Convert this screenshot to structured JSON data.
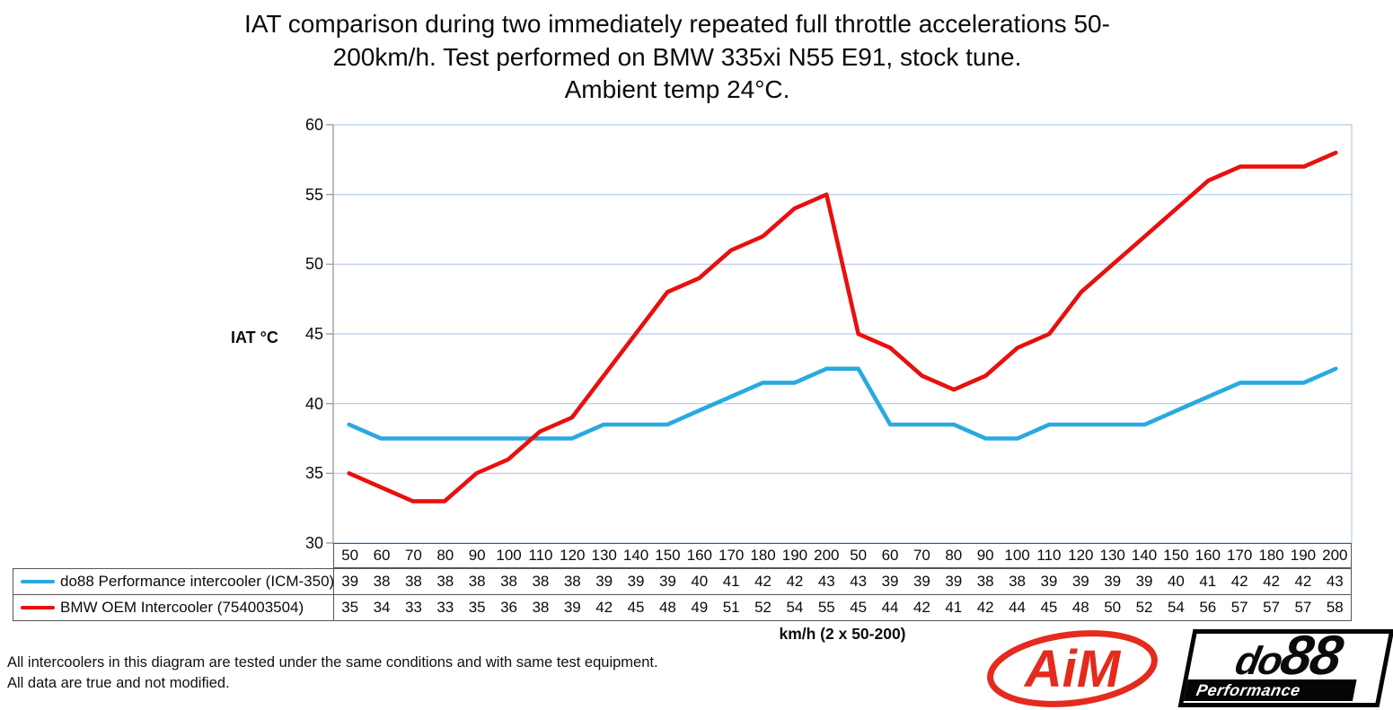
{
  "chart_data": {
    "type": "line",
    "title_lines": [
      "IAT comparison during two immediately repeated full throttle accelerations 50-",
      "200km/h. Test performed on BMW 335xi N55 E91, stock tune.",
      "Ambient temp 24°C."
    ],
    "ylabel": "IAT °C",
    "xlabel": "km/h (2 x 50-200)",
    "ylim": [
      30,
      60
    ],
    "yticks": [
      60,
      55,
      50,
      45,
      40,
      35,
      30
    ],
    "grid": true,
    "legend_position": "bottom-left of attached data table",
    "categories": [
      50,
      60,
      70,
      80,
      90,
      100,
      110,
      120,
      130,
      140,
      150,
      160,
      170,
      180,
      190,
      200,
      50,
      60,
      70,
      80,
      90,
      100,
      110,
      120,
      130,
      140,
      150,
      160,
      170,
      180,
      190,
      200
    ],
    "series": [
      {
        "name": "do88 Performance intercooler (ICM-350)",
        "color": "#29a9e0",
        "values": [
          39,
          38,
          38,
          38,
          38,
          38,
          38,
          38,
          39,
          39,
          39,
          40,
          41,
          42,
          42,
          43,
          43,
          39,
          39,
          39,
          38,
          38,
          39,
          39,
          39,
          39,
          40,
          41,
          42,
          42,
          42,
          43
        ],
        "plotted": [
          38.5,
          37.5,
          37.5,
          37.5,
          37.5,
          37.5,
          37.5,
          37.5,
          38.5,
          38.5,
          38.5,
          39.5,
          40.5,
          41.5,
          41.5,
          42.5,
          42.5,
          38.5,
          38.5,
          38.5,
          37.5,
          37.5,
          38.5,
          38.5,
          38.5,
          38.5,
          39.5,
          40.5,
          41.5,
          41.5,
          41.5,
          42.5
        ]
      },
      {
        "name": "BMW OEM Intercooler (754003504)",
        "color": "#e8100e",
        "values": [
          35,
          34,
          33,
          33,
          35,
          36,
          38,
          39,
          42,
          45,
          48,
          49,
          51,
          52,
          54,
          55,
          45,
          44,
          42,
          41,
          42,
          44,
          45,
          48,
          50,
          52,
          54,
          56,
          57,
          57,
          57,
          58
        ],
        "plotted": [
          35,
          34,
          33,
          33,
          35,
          36,
          38,
          39,
          42,
          45,
          48,
          49,
          51,
          52,
          54,
          55,
          45,
          44,
          42,
          41,
          42,
          44,
          45,
          48,
          50,
          52,
          54,
          56,
          57,
          57,
          57,
          58
        ]
      }
    ],
    "colors": {
      "grid": "#b8c9e4",
      "axis": "#a0a0a0"
    }
  },
  "footnote_lines": [
    "All intercoolers in this diagram are tested under the same conditions and with same test equipment.",
    "All data are true and not modified."
  ],
  "logos": {
    "aim_text": "AiM",
    "do88_do": "do",
    "do88_88": "88",
    "do88_sub": "Performance"
  }
}
